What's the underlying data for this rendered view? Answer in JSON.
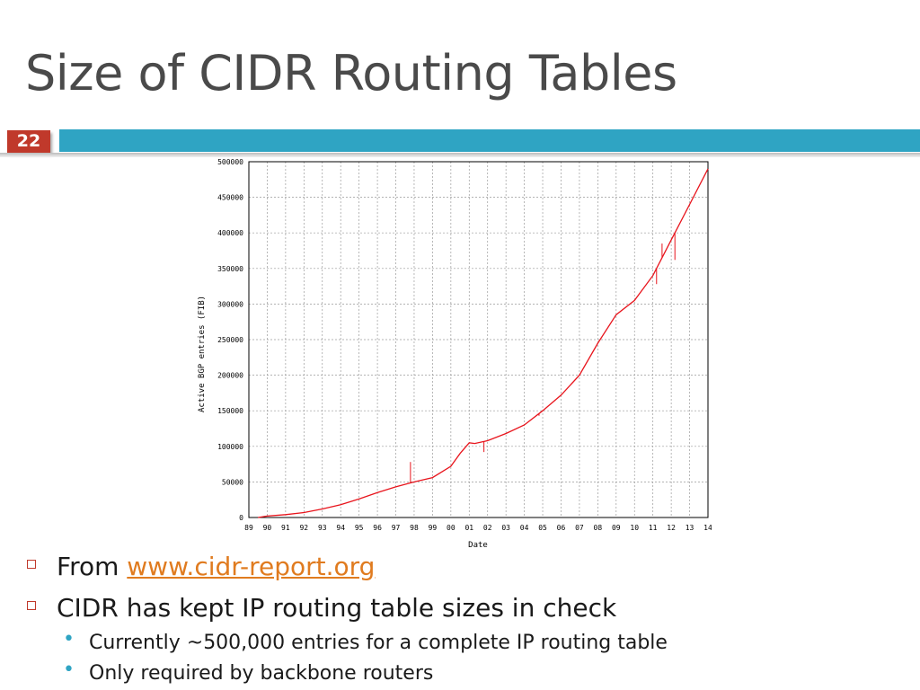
{
  "slide": {
    "title": "Size of CIDR Routing Tables",
    "number": "22",
    "accent_color": "#2fa4c3",
    "number_color": "#c0392b"
  },
  "bullets": [
    {
      "prefix": "From ",
      "link": "www.cidr-report.org"
    },
    {
      "text": "CIDR has kept IP routing table sizes in check"
    }
  ],
  "subbullets": [
    "Currently ~500,000 entries for a complete IP routing table",
    "Only required by backbone routers"
  ],
  "chart_data": {
    "type": "line",
    "xlabel": "Date",
    "ylabel": "Active BGP entries (FIB)",
    "x_tick_labels": [
      "89",
      "90",
      "91",
      "92",
      "93",
      "94",
      "95",
      "96",
      "97",
      "98",
      "99",
      "00",
      "01",
      "02",
      "03",
      "04",
      "05",
      "06",
      "07",
      "08",
      "09",
      "10",
      "11",
      "12",
      "13",
      "14"
    ],
    "y_ticks": [
      0,
      50000,
      100000,
      150000,
      200000,
      250000,
      300000,
      350000,
      400000,
      450000,
      500000
    ],
    "ylim": [
      0,
      500000
    ],
    "xlim": [
      1989,
      2014
    ],
    "grid": true,
    "line_color": "#e8141c",
    "series": [
      {
        "x": [
          1989.5,
          1990,
          1991,
          1992,
          1993,
          1994,
          1995,
          1996,
          1997,
          1998,
          1999,
          2000,
          2000.5,
          2001,
          2001.3,
          2002,
          2003,
          2004,
          2005,
          2006,
          2007,
          2008,
          2009,
          2010,
          2011,
          2012,
          2013,
          2014
        ],
        "y": [
          0,
          2000,
          4000,
          7000,
          12000,
          18000,
          26000,
          35000,
          43000,
          50000,
          56000,
          72000,
          90000,
          105000,
          104000,
          108000,
          118000,
          130000,
          150000,
          172000,
          200000,
          245000,
          285000,
          305000,
          340000,
          390000,
          440000,
          490000
        ]
      }
    ],
    "spikes": [
      {
        "x": 1997.8,
        "y": 78000
      },
      {
        "x": 2001.8,
        "y": 92000
      },
      {
        "x": 2004.8,
        "y": 143000
      },
      {
        "x": 2011.2,
        "y": 328000
      },
      {
        "x": 2011.5,
        "y": 385000
      },
      {
        "x": 2012.2,
        "y": 362000
      }
    ]
  }
}
